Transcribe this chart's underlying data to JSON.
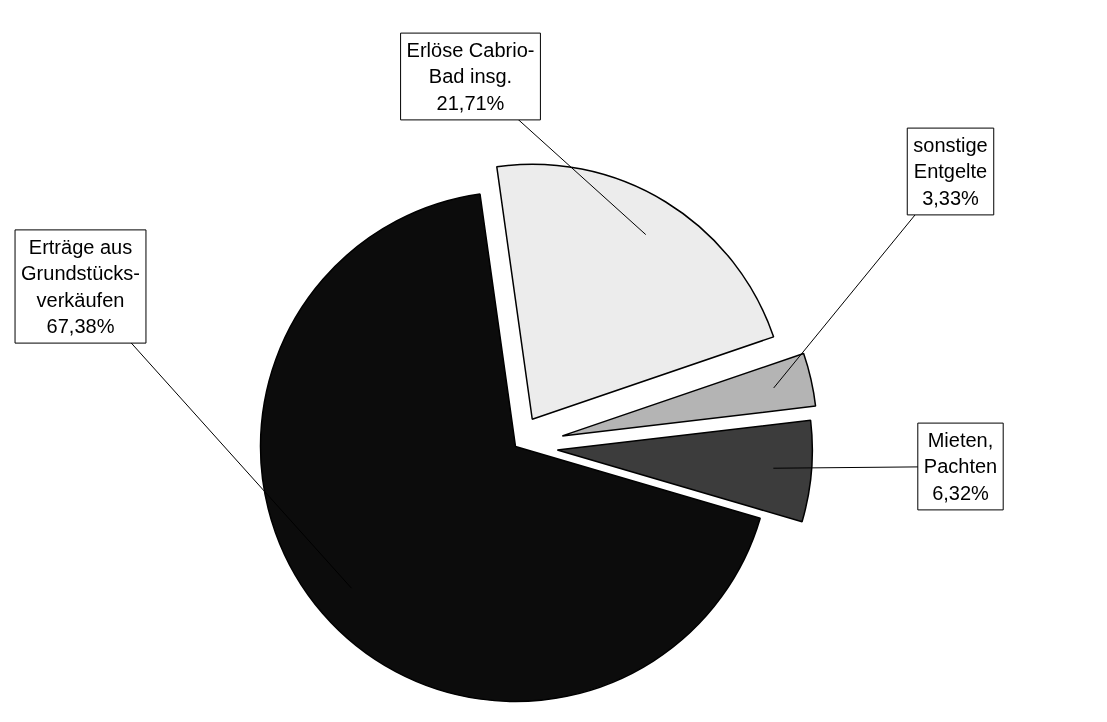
{
  "chart_data": {
    "type": "pie",
    "categories": [
      "Erlöse Cabrio-Bad insg.",
      "sonstige Entgelte",
      "Mieten, Pachten",
      "Erträge aus Grundstücks-verkäufen"
    ],
    "values": [
      21.71,
      3.33,
      6.32,
      67.38
    ],
    "value_labels": [
      "21,71%",
      "3,33%",
      "6,32%",
      "67,38%"
    ],
    "colors": [
      "#ececec",
      "#b4b4b4",
      "#3c3c3c",
      "#0c0c0c"
    ]
  }
}
